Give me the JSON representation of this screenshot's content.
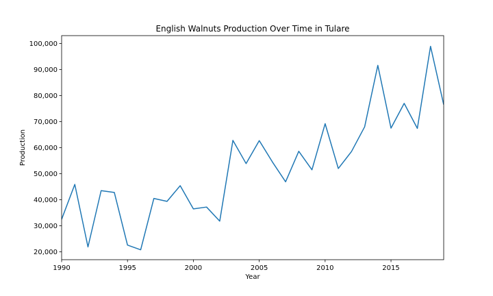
{
  "chart_data": {
    "type": "line",
    "title": "English Walnuts Production Over Time in Tulare",
    "xlabel": "Year",
    "ylabel": "Production",
    "xlim": [
      1990,
      2019
    ],
    "ylim": [
      17000,
      103000
    ],
    "x_ticks": [
      1990,
      1995,
      2000,
      2005,
      2010,
      2015
    ],
    "x_tick_labels": [
      "1990",
      "1995",
      "2000",
      "2005",
      "2010",
      "2015"
    ],
    "y_ticks": [
      20000,
      30000,
      40000,
      50000,
      60000,
      70000,
      80000,
      90000,
      100000
    ],
    "y_tick_labels": [
      "20,000",
      "30,000",
      "40,000",
      "50,000",
      "60,000",
      "70,000",
      "80,000",
      "90,000",
      "100,000"
    ],
    "grid": false,
    "legend": "none",
    "series": [
      {
        "color": "#1f77b4",
        "x": [
          1990,
          1991,
          1992,
          1993,
          1994,
          1995,
          1996,
          1997,
          1998,
          1999,
          2000,
          2001,
          2002,
          2003,
          2004,
          2005,
          2006,
          2007,
          2008,
          2009,
          2010,
          2011,
          2012,
          2013,
          2014,
          2015,
          2016,
          2017,
          2018,
          2019
        ],
        "values": [
          32500,
          45900,
          21900,
          43500,
          42800,
          22600,
          20800,
          40500,
          39400,
          45400,
          36500,
          37200,
          31800,
          62800,
          53900,
          62700,
          54500,
          46900,
          58600,
          51500,
          69200,
          52000,
          58500,
          68000,
          91600,
          67500,
          77000,
          67400,
          98900,
          76500
        ]
      }
    ]
  }
}
